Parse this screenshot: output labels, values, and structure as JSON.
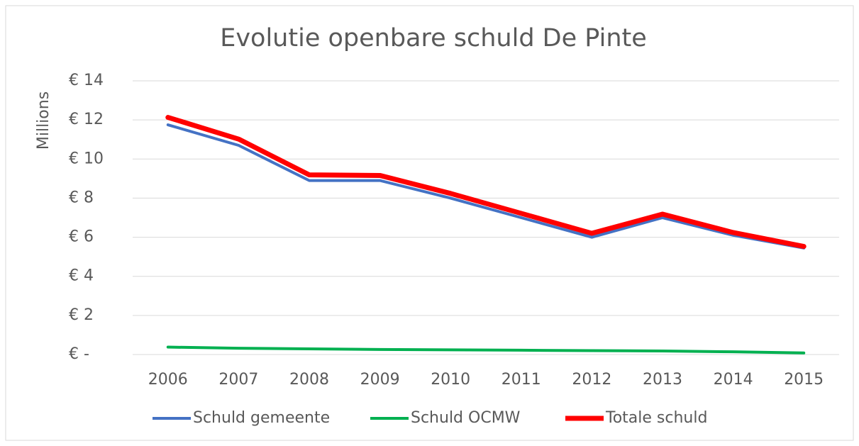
{
  "chart_data": {
    "type": "line",
    "title": "Evolutie openbare schuld De Pinte",
    "y_label": "Millions",
    "categories": [
      "2006",
      "2007",
      "2008",
      "2009",
      "2010",
      "2011",
      "2012",
      "2013",
      "2014",
      "2015"
    ],
    "series": [
      {
        "name": "Schuld gemeente",
        "color": "#4472c4",
        "values": [
          11.75,
          10.7,
          8.9,
          8.9,
          8.0,
          7.0,
          6.0,
          7.0,
          6.1,
          5.45
        ]
      },
      {
        "name": "Schuld OCMW",
        "color": "#00b050",
        "values": [
          0.38,
          0.32,
          0.29,
          0.26,
          0.24,
          0.22,
          0.2,
          0.18,
          0.14,
          0.08
        ]
      },
      {
        "name": "Totale schuld",
        "color": "#ff0000",
        "values": [
          12.13,
          11.02,
          9.19,
          9.16,
          8.24,
          7.22,
          6.2,
          7.18,
          6.24,
          5.53
        ]
      }
    ],
    "ylim": [
      0,
      14
    ],
    "yticks": [
      {
        "value": 0,
        "label": "€ -"
      },
      {
        "value": 2,
        "label": "€ 2"
      },
      {
        "value": 4,
        "label": "€ 4"
      },
      {
        "value": 6,
        "label": "€ 6"
      },
      {
        "value": 8,
        "label": "€ 8"
      },
      {
        "value": 10,
        "label": "€ 10"
      },
      {
        "value": 12,
        "label": "€ 12"
      },
      {
        "value": 14,
        "label": "€ 14"
      }
    ],
    "grid": true,
    "legend": "bottom"
  }
}
